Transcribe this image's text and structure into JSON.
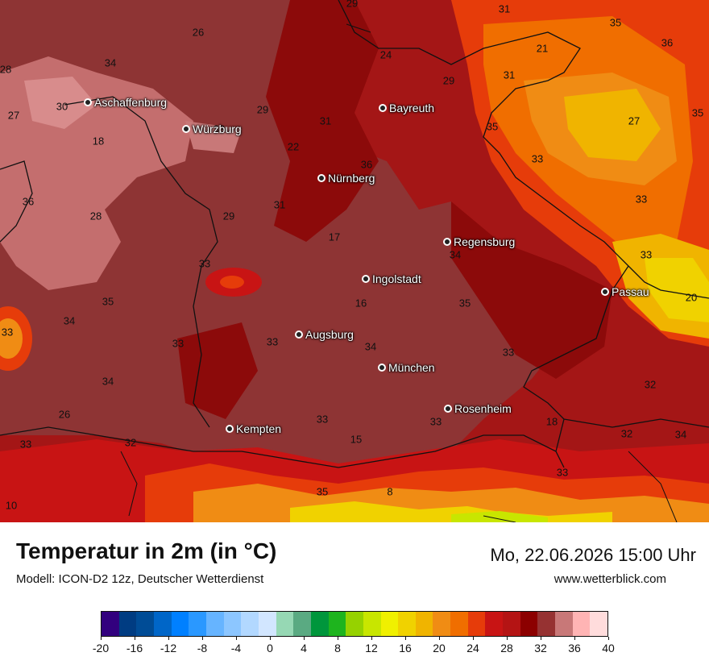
{
  "map": {
    "cities": [
      {
        "name": "Aschaffenburg"
      },
      {
        "name": "Würzburg"
      },
      {
        "name": "Bayreuth"
      },
      {
        "name": "Nürnberg"
      },
      {
        "name": "Regensburg"
      },
      {
        "name": "Ingolstadt"
      },
      {
        "name": "Passau"
      },
      {
        "name": "Augsburg"
      },
      {
        "name": "München"
      },
      {
        "name": "Rosenheim"
      },
      {
        "name": "Kempten"
      }
    ],
    "temperature_labels": [
      "29",
      "31",
      "26",
      "34",
      "28",
      "24",
      "21",
      "29",
      "31",
      "35",
      "36",
      "30",
      "27",
      "29",
      "31",
      "35",
      "35",
      "33",
      "18",
      "27",
      "22",
      "36",
      "33",
      "36",
      "31",
      "28",
      "29",
      "33",
      "17",
      "34",
      "33",
      "33",
      "16",
      "35",
      "20",
      "35",
      "34",
      "33",
      "33",
      "33",
      "34",
      "33",
      "32",
      "34",
      "33",
      "33",
      "18",
      "34",
      "26",
      "33",
      "32",
      "15",
      "32",
      "33",
      "35",
      "8",
      "10"
    ]
  },
  "footer": {
    "title": "Temperatur in 2m (in °C)",
    "model": "Modell: ICON-D2 12z, Deutscher Wetterdienst",
    "datetime": "Mo, 22.06.2026 15:00 Uhr",
    "website": "www.wetterblick.com"
  },
  "legend": {
    "tick_labels": [
      "-20",
      "-16",
      "-12",
      "-8",
      "-4",
      "0",
      "4",
      "8",
      "12",
      "16",
      "20",
      "24",
      "28",
      "32",
      "36",
      "40"
    ],
    "colors": [
      "#32007e",
      "#003c82",
      "#004c96",
      "#0066c8",
      "#0080ff",
      "#2a98ff",
      "#66b4ff",
      "#8cc6ff",
      "#b2d8ff",
      "#d2e6ff",
      "#96d8b4",
      "#5aaa82",
      "#00963c",
      "#1eb41e",
      "#96d200",
      "#c8e600",
      "#f0f000",
      "#f0d200",
      "#f0b400",
      "#f08c14",
      "#f06e00",
      "#e63c0a",
      "#c81414",
      "#b41414",
      "#8c0000",
      "#963232",
      "#c87878",
      "#ffb4b4",
      "#ffdcdc"
    ]
  },
  "colors": {
    "dark_red": "#8c0000",
    "mid_red": "#a01818",
    "pink_brown": "#963c3c",
    "light_pink": "#c87878",
    "orange": "#f08c14",
    "yellow": "#f0d200"
  }
}
